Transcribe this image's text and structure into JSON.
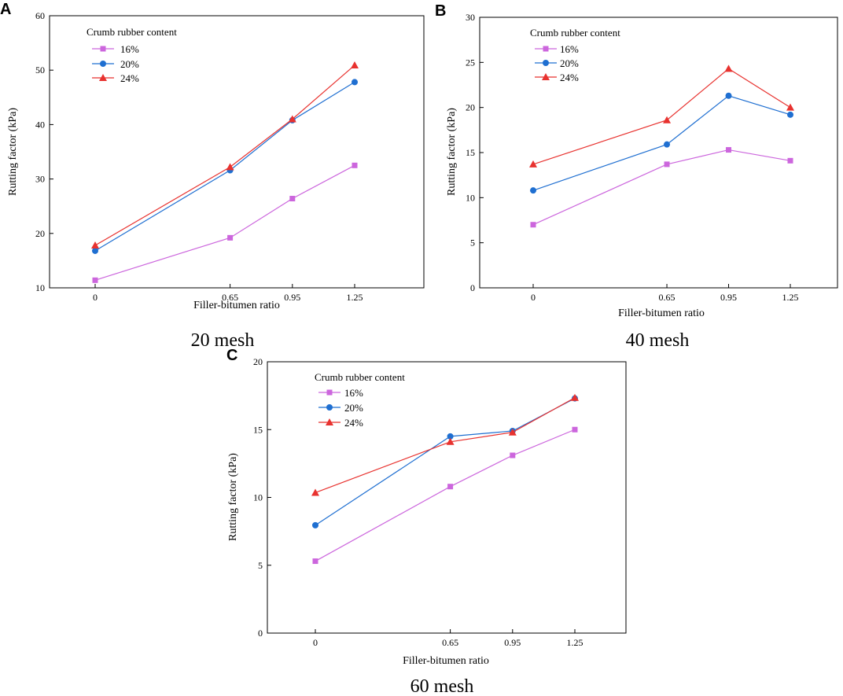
{
  "chart_data": [
    {
      "panel": "A",
      "type": "line",
      "caption": "20 mesh",
      "xlabel": "Filler-bitumen ratio",
      "ylabel": "Rutting factor (kPa)",
      "x": [
        0,
        0.65,
        0.95,
        1.25
      ],
      "x_tick_labels": [
        "0",
        "0.65",
        "0.95",
        "1.25"
      ],
      "ylim": [
        10,
        60
      ],
      "y_ticks": [
        10,
        20,
        30,
        40,
        50,
        60
      ],
      "legend_title": "Crumb rubber content",
      "series": [
        {
          "name": "16%",
          "color": "#cc66dd",
          "marker": "square",
          "values": [
            11.4,
            19.2,
            26.4,
            32.5
          ]
        },
        {
          "name": "20%",
          "color": "#1f6fd1",
          "marker": "circle",
          "values": [
            16.8,
            31.6,
            40.8,
            47.8
          ]
        },
        {
          "name": "24%",
          "color": "#e8322f",
          "marker": "triangle",
          "values": [
            17.8,
            32.2,
            41.0,
            50.9
          ]
        }
      ]
    },
    {
      "panel": "B",
      "type": "line",
      "caption": "40 mesh",
      "xlabel": "Filler-bitumen ratio",
      "ylabel": "Rutting factor (kPa)",
      "x": [
        0,
        0.65,
        0.95,
        1.25
      ],
      "x_tick_labels": [
        "0",
        "0.65",
        "0.95",
        "1.25"
      ],
      "ylim": [
        0,
        30
      ],
      "y_ticks": [
        0,
        5,
        10,
        15,
        20,
        25,
        30
      ],
      "legend_title": "Crumb rubber content",
      "series": [
        {
          "name": "16%",
          "color": "#cc66dd",
          "marker": "square",
          "values": [
            7.0,
            13.7,
            15.3,
            14.1
          ]
        },
        {
          "name": "20%",
          "color": "#1f6fd1",
          "marker": "circle",
          "values": [
            10.8,
            15.9,
            21.3,
            19.2
          ]
        },
        {
          "name": "24%",
          "color": "#e8322f",
          "marker": "triangle",
          "values": [
            13.7,
            18.6,
            24.3,
            20.0
          ]
        }
      ]
    },
    {
      "panel": "C",
      "type": "line",
      "caption": "60 mesh",
      "xlabel": "Filler-bitumen ratio",
      "ylabel": "Rutting factor (kPa)",
      "x": [
        0,
        0.65,
        0.95,
        1.25
      ],
      "x_tick_labels": [
        "0",
        "0.65",
        "0.95",
        "1.25"
      ],
      "ylim": [
        0,
        20
      ],
      "y_ticks": [
        0,
        5,
        10,
        15,
        20
      ],
      "legend_title": "Crumb rubber content",
      "series": [
        {
          "name": "16%",
          "color": "#cc66dd",
          "marker": "square",
          "values": [
            5.3,
            10.8,
            13.1,
            15.0
          ]
        },
        {
          "name": "20%",
          "color": "#1f6fd1",
          "marker": "circle",
          "values": [
            7.95,
            14.5,
            14.9,
            17.3
          ]
        },
        {
          "name": "24%",
          "color": "#e8322f",
          "marker": "triangle",
          "values": [
            10.35,
            14.1,
            14.8,
            17.35
          ]
        }
      ]
    }
  ]
}
